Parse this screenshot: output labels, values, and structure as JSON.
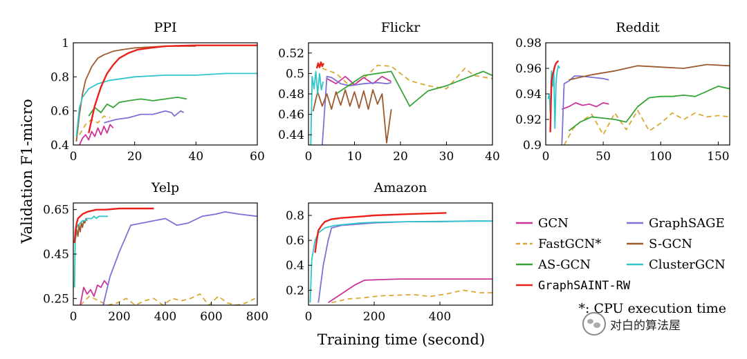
{
  "figure": {
    "ylabel": "Validation F1-micro",
    "xlabel": "Training time (second)",
    "footnote": "*: CPU execution time",
    "watermark": "对白的算法屋"
  },
  "legend": [
    {
      "name": "GCN",
      "color": "#cc3399",
      "dash": false
    },
    {
      "name": "GraphSAGE",
      "color": "#7d6fd6",
      "dash": false
    },
    {
      "name": "FastGCN*",
      "color": "#d9a832",
      "dash": true
    },
    {
      "name": "S-GCN",
      "color": "#9c5a2c",
      "dash": false
    },
    {
      "name": "AS-GCN",
      "color": "#36a436",
      "dash": false
    },
    {
      "name": "ClusterGCN",
      "color": "#2fc6cc",
      "dash": false
    },
    {
      "name": "GraphSAINT-RW",
      "color": "#e8211b",
      "dash": false
    }
  ],
  "chart_data": [
    {
      "type": "line",
      "title": "PPI",
      "xlim": [
        0,
        60
      ],
      "ylim": [
        0.4,
        1.0
      ],
      "xticks": [
        "0",
        "20",
        "40",
        "60"
      ],
      "xtick_values": [
        0,
        20,
        40,
        60
      ],
      "yticks": [
        "0.4",
        "0.6",
        "0.8",
        "1"
      ],
      "ytick_values": [
        0.4,
        0.6,
        0.8,
        1.0
      ],
      "series": [
        {
          "name": "GCN",
          "x": [
            2,
            3,
            4,
            5,
            6,
            7,
            8,
            9,
            10,
            11,
            12,
            13
          ],
          "y": [
            0.4,
            0.44,
            0.46,
            0.43,
            0.48,
            0.45,
            0.5,
            0.46,
            0.51,
            0.47,
            0.52,
            0.5
          ]
        },
        {
          "name": "FastGCN*",
          "x": [
            2,
            4,
            6,
            8,
            10,
            12
          ],
          "y": [
            0.46,
            0.52,
            0.55,
            0.53,
            0.57,
            0.56
          ]
        },
        {
          "name": "GraphSAGE",
          "x": [
            10,
            14,
            18,
            22,
            26,
            30,
            32,
            33,
            35,
            36
          ],
          "y": [
            0.53,
            0.55,
            0.56,
            0.58,
            0.58,
            0.6,
            0.59,
            0.57,
            0.6,
            0.59
          ]
        },
        {
          "name": "AS-GCN",
          "x": [
            5,
            7,
            9,
            11,
            13,
            15,
            18,
            22,
            26,
            30,
            34,
            37
          ],
          "y": [
            0.57,
            0.62,
            0.59,
            0.64,
            0.62,
            0.65,
            0.66,
            0.67,
            0.66,
            0.67,
            0.68,
            0.67
          ]
        },
        {
          "name": "ClusterGCN",
          "x": [
            1,
            2,
            3,
            5,
            8,
            12,
            16,
            20,
            30,
            40,
            50,
            60
          ],
          "y": [
            0.45,
            0.62,
            0.68,
            0.73,
            0.76,
            0.78,
            0.79,
            0.8,
            0.81,
            0.81,
            0.82,
            0.82
          ]
        },
        {
          "name": "S-GCN",
          "x": [
            1,
            2,
            3,
            4,
            6,
            8,
            10,
            13,
            16,
            20,
            25,
            30,
            35,
            40
          ],
          "y": [
            0.42,
            0.58,
            0.7,
            0.78,
            0.86,
            0.91,
            0.93,
            0.95,
            0.96,
            0.97,
            0.975,
            0.98,
            0.98,
            0.98
          ]
        },
        {
          "name": "GraphSAINT-RW",
          "x": [
            5,
            7,
            9,
            11,
            13,
            15,
            18,
            21,
            25,
            30,
            40,
            50,
            60
          ],
          "y": [
            0.47,
            0.63,
            0.74,
            0.82,
            0.87,
            0.91,
            0.94,
            0.96,
            0.97,
            0.98,
            0.985,
            0.985,
            0.985
          ]
        }
      ]
    },
    {
      "type": "line",
      "title": "Flickr",
      "xlim": [
        0,
        40
      ],
      "ylim": [
        0.43,
        0.53
      ],
      "xticks": [
        "0",
        "10",
        "20",
        "30",
        "40"
      ],
      "xtick_values": [
        0,
        10,
        20,
        30,
        40
      ],
      "yticks": [
        "0.44",
        "0.46",
        "0.48",
        "0.5",
        "0.52"
      ],
      "ytick_values": [
        0.44,
        0.46,
        0.48,
        0.5,
        0.52
      ],
      "series": [
        {
          "name": "GCN",
          "x": [
            4,
            6,
            8,
            10,
            12,
            14,
            16,
            18
          ],
          "y": [
            0.495,
            0.49,
            0.497,
            0.489,
            0.496,
            0.49,
            0.497,
            0.492
          ]
        },
        {
          "name": "FastGCN*",
          "x": [
            3,
            6,
            9,
            12,
            15,
            18,
            22,
            26,
            30,
            34,
            36,
            40
          ],
          "y": [
            0.505,
            0.5,
            0.488,
            0.495,
            0.508,
            0.507,
            0.493,
            0.488,
            0.485,
            0.505,
            0.498,
            0.495
          ]
        },
        {
          "name": "GraphSAGE",
          "x": [
            3,
            4,
            5,
            7,
            9,
            12,
            15,
            17,
            18
          ],
          "y": [
            0.43,
            0.497,
            0.496,
            0.49,
            0.488,
            0.49,
            0.491,
            0.49,
            0.491
          ]
        },
        {
          "name": "AS-GCN",
          "x": [
            6,
            12,
            18,
            22,
            26,
            30,
            34,
            38,
            40
          ],
          "y": [
            0.48,
            0.498,
            0.502,
            0.468,
            0.483,
            0.488,
            0.495,
            0.502,
            0.498
          ]
        },
        {
          "name": "S-GCN",
          "x": [
            1,
            2,
            3,
            4,
            5,
            6,
            7,
            8,
            9,
            10,
            11,
            12,
            13,
            14,
            15,
            16,
            17,
            18
          ],
          "y": [
            0.463,
            0.482,
            0.468,
            0.48,
            0.465,
            0.482,
            0.469,
            0.484,
            0.468,
            0.482,
            0.466,
            0.483,
            0.465,
            0.484,
            0.47,
            0.48,
            0.432,
            0.465
          ]
        },
        {
          "name": "ClusterGCN",
          "x": [
            0.5,
            0.8,
            1.2,
            1.6,
            2,
            2.4,
            2.8,
            3.2
          ],
          "y": [
            0.43,
            0.497,
            0.485,
            0.502,
            0.48,
            0.5,
            0.484,
            0.492
          ]
        },
        {
          "name": "GraphSAINT-RW",
          "x": [
            1.8,
            2.1,
            2.4,
            2.7,
            3.0,
            3.3
          ],
          "y": [
            0.505,
            0.51,
            0.506,
            0.511,
            0.507,
            0.51
          ]
        }
      ]
    },
    {
      "type": "line",
      "title": "Reddit",
      "xlim": [
        0,
        160
      ],
      "ylim": [
        0.9,
        0.98
      ],
      "xticks": [
        "0",
        "50",
        "100",
        "150"
      ],
      "xtick_values": [
        0,
        50,
        100,
        150
      ],
      "yticks": [
        "0.9",
        "0.92",
        "0.94",
        "0.96",
        "0.98"
      ],
      "ytick_values": [
        0.9,
        0.92,
        0.94,
        0.96,
        0.98
      ],
      "series": [
        {
          "name": "GCN",
          "x": [
            14,
            20,
            26,
            32,
            38,
            44,
            50,
            55
          ],
          "y": [
            0.928,
            0.93,
            0.933,
            0.931,
            0.932,
            0.93,
            0.933,
            0.932
          ]
        },
        {
          "name": "FastGCN*",
          "x": [
            16,
            24,
            30,
            40,
            50,
            60,
            70,
            80,
            90,
            100,
            110,
            120,
            130,
            140,
            150,
            160
          ],
          "y": [
            0.9,
            0.913,
            0.918,
            0.924,
            0.908,
            0.925,
            0.912,
            0.927,
            0.911,
            0.917,
            0.925,
            0.92,
            0.925,
            0.922,
            0.923,
            0.922
          ]
        },
        {
          "name": "GraphSAGE",
          "x": [
            14,
            16,
            20,
            25,
            30,
            40,
            50,
            55
          ],
          "y": [
            0.9,
            0.948,
            0.95,
            0.954,
            0.954,
            0.953,
            0.952,
            0.951
          ]
        },
        {
          "name": "AS-GCN",
          "x": [
            20,
            30,
            40,
            50,
            60,
            70,
            80,
            90,
            100,
            110,
            120,
            130,
            140,
            150,
            160
          ],
          "y": [
            0.911,
            0.918,
            0.922,
            0.921,
            0.92,
            0.918,
            0.93,
            0.937,
            0.938,
            0.938,
            0.939,
            0.938,
            0.942,
            0.946,
            0.944
          ]
        },
        {
          "name": "S-GCN",
          "x": [
            20,
            40,
            60,
            80,
            100,
            120,
            140,
            160
          ],
          "y": [
            0.951,
            0.955,
            0.958,
            0.962,
            0.961,
            0.96,
            0.963,
            0.962
          ]
        },
        {
          "name": "ClusterGCN",
          "x": [
            2,
            3,
            4,
            5,
            6,
            7,
            8,
            9,
            10,
            11,
            12
          ],
          "y": [
            0.936,
            0.94,
            0.925,
            0.958,
            0.946,
            0.96,
            0.913,
            0.95,
            0.958,
            0.962,
            0.96
          ]
        },
        {
          "name": "GraphSAINT-RW",
          "x": [
            4,
            5,
            6,
            7,
            8,
            9,
            10,
            11
          ],
          "y": [
            0.91,
            0.95,
            0.955,
            0.958,
            0.962,
            0.964,
            0.965,
            0.966
          ]
        }
      ]
    },
    {
      "type": "line",
      "title": "Yelp",
      "xlim": [
        0,
        800
      ],
      "ylim": [
        0.22,
        0.68
      ],
      "xticks": [
        "0",
        "200",
        "400",
        "600",
        "800"
      ],
      "xtick_values": [
        0,
        200,
        400,
        600,
        800
      ],
      "yticks": [
        "0.25",
        "0.45",
        "0.65"
      ],
      "ytick_values": [
        0.25,
        0.45,
        0.65
      ],
      "series": [
        {
          "name": "GCN",
          "x": [
            30,
            45,
            60,
            75,
            90,
            105,
            120,
            135,
            150
          ],
          "y": [
            0.22,
            0.3,
            0.27,
            0.29,
            0.26,
            0.31,
            0.3,
            0.33,
            0.31
          ]
        },
        {
          "name": "FastGCN*",
          "x": [
            30,
            70,
            110,
            150,
            190,
            230,
            270,
            310,
            350,
            390,
            430,
            470,
            510,
            550,
            590,
            630,
            670,
            710,
            750,
            790
          ],
          "y": [
            0.22,
            0.26,
            0.24,
            0.22,
            0.23,
            0.25,
            0.22,
            0.24,
            0.25,
            0.22,
            0.25,
            0.24,
            0.25,
            0.27,
            0.22,
            0.26,
            0.23,
            0.22,
            0.23,
            0.25
          ]
        },
        {
          "name": "GraphSAGE",
          "x": [
            130,
            160,
            200,
            250,
            300,
            350,
            400,
            450,
            500,
            560,
            620,
            660,
            720,
            800
          ],
          "y": [
            0.22,
            0.35,
            0.46,
            0.58,
            0.59,
            0.6,
            0.61,
            0.58,
            0.59,
            0.62,
            0.63,
            0.64,
            0.63,
            0.62
          ]
        },
        {
          "name": "S-GCN",
          "x": [
            10,
            15,
            20,
            25,
            30,
            35,
            40,
            45,
            50,
            55,
            60
          ],
          "y": [
            0.52,
            0.56,
            0.53,
            0.58,
            0.55,
            0.59,
            0.57,
            0.6,
            0.59,
            0.61,
            0.6
          ]
        },
        {
          "name": "ClusterGCN",
          "x": [
            5,
            8,
            12,
            20,
            30,
            40,
            50,
            60,
            70,
            80,
            90,
            100,
            110,
            120,
            130,
            140,
            150
          ],
          "y": [
            0.3,
            0.5,
            0.56,
            0.58,
            0.59,
            0.6,
            0.6,
            0.61,
            0.61,
            0.61,
            0.62,
            0.61,
            0.62,
            0.62,
            0.62,
            0.62,
            0.62
          ]
        },
        {
          "name": "GraphSAINT-RW",
          "x": [
            5,
            10,
            15,
            20,
            30,
            40,
            60,
            80,
            100,
            140,
            200,
            260,
            300,
            350
          ],
          "y": [
            0.5,
            0.56,
            0.59,
            0.61,
            0.62,
            0.63,
            0.64,
            0.645,
            0.65,
            0.65,
            0.655,
            0.655,
            0.655,
            0.655
          ]
        }
      ]
    },
    {
      "type": "line",
      "title": "Amazon",
      "xlim": [
        0,
        560
      ],
      "ylim": [
        0.08,
        0.9
      ],
      "xticks": [
        "0",
        "200",
        "400"
      ],
      "xtick_values": [
        0,
        200,
        400
      ],
      "yticks": [
        "0.2",
        "0.4",
        "0.6",
        "0.8"
      ],
      "ytick_values": [
        0.2,
        0.4,
        0.6,
        0.8
      ],
      "series": [
        {
          "name": "GCN",
          "x": [
            60,
            100,
            140,
            170,
            220,
            280,
            320,
            400,
            480,
            560
          ],
          "y": [
            0.1,
            0.17,
            0.24,
            0.28,
            0.285,
            0.29,
            0.29,
            0.29,
            0.29,
            0.29
          ]
        },
        {
          "name": "FastGCN*",
          "x": [
            70,
            120,
            170,
            220,
            270,
            320,
            370,
            420,
            470,
            520,
            560
          ],
          "y": [
            0.1,
            0.13,
            0.14,
            0.155,
            0.16,
            0.165,
            0.15,
            0.17,
            0.2,
            0.18,
            0.18
          ]
        },
        {
          "name": "GraphSAGE",
          "x": [
            30,
            45,
            60,
            70,
            100,
            150,
            200,
            300,
            400,
            500,
            560
          ],
          "y": [
            0.1,
            0.4,
            0.6,
            0.7,
            0.72,
            0.73,
            0.74,
            0.75,
            0.75,
            0.755,
            0.755
          ]
        },
        {
          "name": "ClusterGCN",
          "x": [
            5,
            10,
            20,
            30,
            50,
            80,
            120,
            160,
            200,
            300,
            400,
            500,
            560
          ],
          "y": [
            0.1,
            0.45,
            0.6,
            0.66,
            0.7,
            0.72,
            0.73,
            0.74,
            0.745,
            0.75,
            0.752,
            0.755,
            0.755
          ]
        },
        {
          "name": "GraphSAINT-RW",
          "x": [
            20,
            25,
            30,
            40,
            50,
            70,
            100,
            150,
            200,
            300,
            420
          ],
          "y": [
            0.5,
            0.6,
            0.68,
            0.72,
            0.75,
            0.77,
            0.78,
            0.79,
            0.8,
            0.81,
            0.82
          ]
        }
      ]
    }
  ]
}
